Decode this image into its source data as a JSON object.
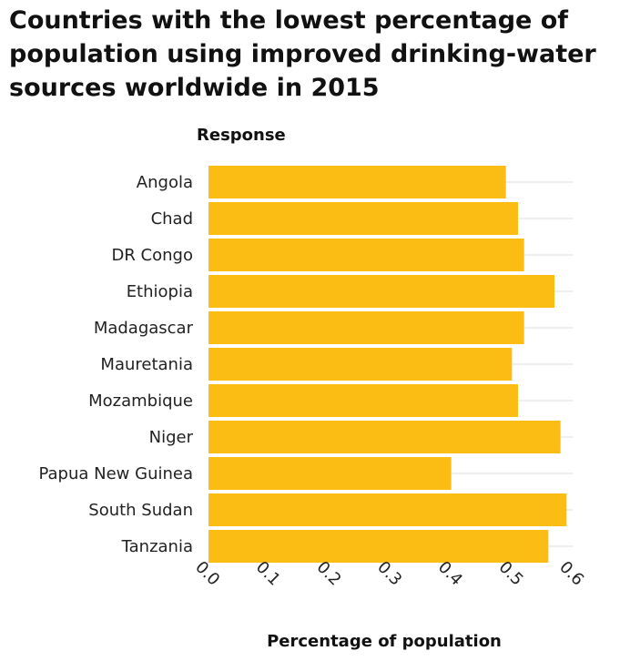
{
  "chart_data": {
    "type": "bar",
    "orientation": "horizontal",
    "title": "Countries with the lowest percentage of population using improved drinking-water sources worldwide in 2015",
    "ylabel": "Response",
    "xlabel": "Percentage of population",
    "categories": [
      "Angola",
      "Chad",
      "DR Congo",
      "Ethiopia",
      "Madagascar",
      "Mauretania",
      "Mozambique",
      "Niger",
      "Papua New Guinea",
      "South Sudan",
      "Tanzania"
    ],
    "values": [
      0.49,
      0.51,
      0.52,
      0.57,
      0.52,
      0.5,
      0.51,
      0.58,
      0.4,
      0.59,
      0.56
    ],
    "xlim": [
      0,
      0.6
    ],
    "xticks": [
      "0.0",
      "0.1",
      "0.2",
      "0.3",
      "0.4",
      "0.5",
      "0.6"
    ],
    "grid": true,
    "bar_color": "#fbbc13",
    "grid_color": "#dddddd"
  }
}
